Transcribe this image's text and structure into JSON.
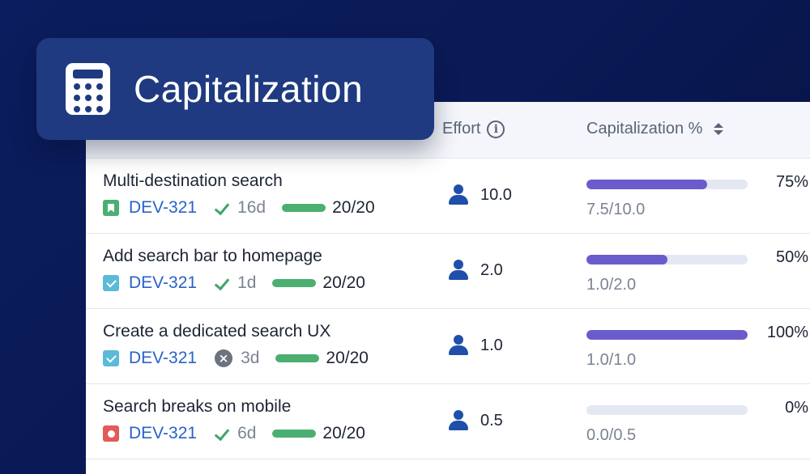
{
  "badge": {
    "title": "Capitalization",
    "icon": "calculator-icon"
  },
  "table": {
    "headers": {
      "effort": "Effort",
      "capitalization": "Capitalization %"
    },
    "rows": [
      {
        "title": "Multi-destination search",
        "type": "story",
        "key": "DEV-321",
        "status": "done",
        "days": "16d",
        "score": "20/20",
        "effort": "10.0",
        "cap_fraction": 0.75,
        "cap_ratio": "7.5/10.0",
        "cap_pct": "75%"
      },
      {
        "title": "Add search bar to homepage",
        "type": "task",
        "key": "DEV-321",
        "status": "done",
        "days": "1d",
        "score": "20/20",
        "effort": "2.0",
        "cap_fraction": 0.5,
        "cap_ratio": "1.0/2.0",
        "cap_pct": "50%"
      },
      {
        "title": "Create a dedicated search UX",
        "type": "task",
        "key": "DEV-321",
        "status": "cancelled",
        "days": "3d",
        "score": "20/20",
        "effort": "1.0",
        "cap_fraction": 1.0,
        "cap_ratio": "1.0/1.0",
        "cap_pct": "100%"
      },
      {
        "title": "Search breaks on mobile",
        "type": "bug",
        "key": "DEV-321",
        "status": "done",
        "days": "6d",
        "score": "20/20",
        "effort": "0.5",
        "cap_fraction": 0.0,
        "cap_ratio": "0.0/0.5",
        "cap_pct": "0%"
      }
    ]
  },
  "colors": {
    "background": "#0b1d5e",
    "badge": "#1f3a80",
    "progress_fill": "#6a5ccc",
    "progress_track": "#e4e8f3",
    "issue_key": "#2962c9",
    "story": "#4caf72",
    "task": "#5bbad8",
    "bug": "#e25a5a"
  }
}
